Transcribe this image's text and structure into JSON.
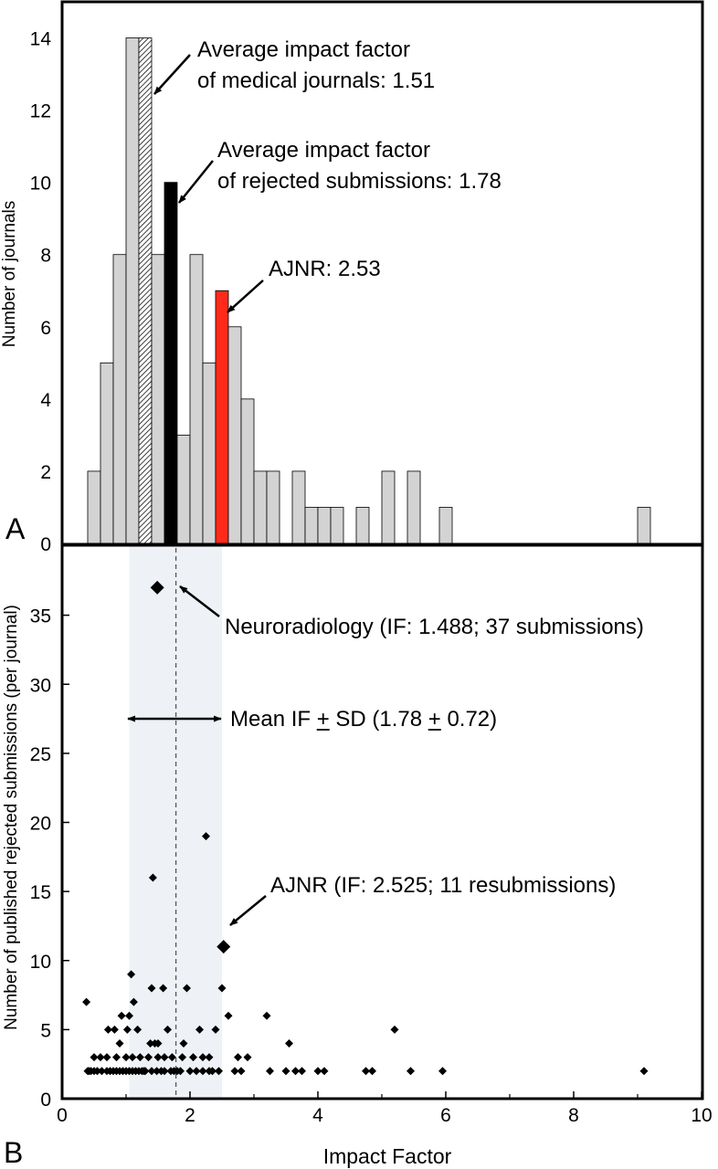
{
  "chart_data": [
    {
      "panel": "A",
      "type": "bar",
      "ylabel": "Number of journals",
      "xlim": [
        0,
        10
      ],
      "ylim": [
        0,
        15
      ],
      "yticks": [
        0,
        2,
        4,
        6,
        8,
        10,
        12,
        14
      ],
      "bin_width": 0.2,
      "colors": {
        "bar": "#d3d3d3",
        "rejected_mean": "#000000",
        "ajnr": "#ff2a1a",
        "medical_mean": "hatched"
      },
      "bars": [
        {
          "x": 0.5,
          "value": 2
        },
        {
          "x": 0.7,
          "value": 5
        },
        {
          "x": 0.9,
          "value": 8
        },
        {
          "x": 1.1,
          "value": 14
        },
        {
          "x": 1.3,
          "value": 14,
          "highlight": "medical_mean"
        },
        {
          "x": 1.5,
          "value": 8
        },
        {
          "x": 1.7,
          "value": 10,
          "highlight": "rejected_mean"
        },
        {
          "x": 1.9,
          "value": 3
        },
        {
          "x": 2.1,
          "value": 8
        },
        {
          "x": 2.3,
          "value": 5
        },
        {
          "x": 2.5,
          "value": 7,
          "highlight": "ajnr"
        },
        {
          "x": 2.7,
          "value": 6
        },
        {
          "x": 2.9,
          "value": 4
        },
        {
          "x": 3.1,
          "value": 2
        },
        {
          "x": 3.3,
          "value": 2
        },
        {
          "x": 3.7,
          "value": 2
        },
        {
          "x": 3.9,
          "value": 1
        },
        {
          "x": 4.1,
          "value": 1
        },
        {
          "x": 4.3,
          "value": 1
        },
        {
          "x": 4.7,
          "value": 1
        },
        {
          "x": 5.1,
          "value": 2
        },
        {
          "x": 5.5,
          "value": 2
        },
        {
          "x": 6.0,
          "value": 1
        },
        {
          "x": 9.1,
          "value": 1
        }
      ],
      "annotations": [
        {
          "lines": [
            "Average impact factor",
            "of medical journals: 1.51"
          ],
          "points_to": {
            "x": 1.45,
            "y": 12.5
          }
        },
        {
          "lines": [
            "Average impact factor",
            "of rejected submissions: 1.78"
          ],
          "points_to": {
            "x": 1.85,
            "y": 9.5
          }
        },
        {
          "lines": [
            "AJNR: 2.53"
          ],
          "points_to": {
            "x": 2.65,
            "y": 6.3
          }
        }
      ]
    },
    {
      "panel": "B",
      "type": "scatter",
      "xlabel": "Impact Factor",
      "ylabel": "Number of published rejected submissions (per journal)",
      "xlim": [
        0,
        10
      ],
      "ylim": [
        0,
        40
      ],
      "xticks": [
        0,
        2,
        4,
        6,
        8,
        10
      ],
      "yticks": [
        0,
        5,
        10,
        15,
        20,
        25,
        30,
        35
      ],
      "band": [
        1.05,
        2.5
      ],
      "mean_line": 1.78,
      "colors": {
        "band": "#eef2f6",
        "marker": "#000000",
        "mean_line": "#555555"
      },
      "points": [
        [
          0.38,
          7
        ],
        [
          0.4,
          2
        ],
        [
          0.42,
          2
        ],
        [
          0.45,
          2
        ],
        [
          0.5,
          2
        ],
        [
          0.5,
          3
        ],
        [
          0.55,
          2
        ],
        [
          0.6,
          3
        ],
        [
          0.62,
          2
        ],
        [
          0.7,
          2
        ],
        [
          0.7,
          3
        ],
        [
          0.72,
          5
        ],
        [
          0.75,
          2
        ],
        [
          0.8,
          2
        ],
        [
          0.82,
          5
        ],
        [
          0.85,
          2
        ],
        [
          0.85,
          3
        ],
        [
          0.9,
          2
        ],
        [
          0.9,
          4
        ],
        [
          0.93,
          6
        ],
        [
          0.95,
          2
        ],
        [
          1.0,
          2
        ],
        [
          1.0,
          3
        ],
        [
          1.02,
          5
        ],
        [
          1.05,
          2
        ],
        [
          1.05,
          6
        ],
        [
          1.08,
          9
        ],
        [
          1.1,
          2
        ],
        [
          1.1,
          3
        ],
        [
          1.12,
          7
        ],
        [
          1.15,
          2
        ],
        [
          1.18,
          5
        ],
        [
          1.2,
          2
        ],
        [
          1.22,
          3
        ],
        [
          1.25,
          2
        ],
        [
          1.28,
          2
        ],
        [
          1.3,
          2
        ],
        [
          1.35,
          3
        ],
        [
          1.38,
          4
        ],
        [
          1.4,
          2
        ],
        [
          1.4,
          8
        ],
        [
          1.42,
          16
        ],
        [
          1.45,
          4
        ],
        [
          1.48,
          2
        ],
        [
          1.5,
          3
        ],
        [
          1.5,
          4
        ],
        [
          1.55,
          2
        ],
        [
          1.58,
          8
        ],
        [
          1.6,
          2
        ],
        [
          1.6,
          3
        ],
        [
          1.65,
          5
        ],
        [
          1.7,
          2
        ],
        [
          1.72,
          3
        ],
        [
          1.75,
          2
        ],
        [
          1.8,
          2
        ],
        [
          1.85,
          2
        ],
        [
          1.88,
          3
        ],
        [
          1.9,
          4
        ],
        [
          1.95,
          8
        ],
        [
          2.0,
          2
        ],
        [
          2.05,
          3
        ],
        [
          2.1,
          2
        ],
        [
          2.15,
          5
        ],
        [
          2.2,
          2
        ],
        [
          2.2,
          3
        ],
        [
          2.25,
          19
        ],
        [
          2.3,
          2
        ],
        [
          2.3,
          3
        ],
        [
          2.35,
          2
        ],
        [
          2.4,
          5
        ],
        [
          2.45,
          2
        ],
        [
          2.5,
          11
        ],
        [
          2.5,
          8
        ],
        [
          2.6,
          6
        ],
        [
          2.7,
          2
        ],
        [
          2.75,
          3
        ],
        [
          2.8,
          2
        ],
        [
          2.9,
          3
        ],
        [
          3.2,
          6
        ],
        [
          3.25,
          2
        ],
        [
          3.5,
          2
        ],
        [
          3.55,
          4
        ],
        [
          3.65,
          2
        ],
        [
          3.75,
          2
        ],
        [
          4.0,
          2
        ],
        [
          4.1,
          2
        ],
        [
          4.75,
          2
        ],
        [
          4.85,
          2
        ],
        [
          5.2,
          5
        ],
        [
          5.45,
          2
        ],
        [
          5.95,
          2
        ],
        [
          9.1,
          2
        ]
      ],
      "highlighted_points": [
        {
          "x": 1.488,
          "y": 37
        },
        {
          "x": 2.525,
          "y": 11
        }
      ],
      "annotations": [
        {
          "text": "Neuroradiology (IF: 1.488; 37 submissions)",
          "points_to": {
            "x": 1.85,
            "y": 35.8
          }
        },
        {
          "text": "Mean IF + SD (1.78 + 0.72)",
          "underlined_char": 9
        },
        {
          "text": "AJNR (IF: 2.525; 11 resubmissions)",
          "points_to": {
            "x": 2.6,
            "y": 11.6
          }
        }
      ]
    }
  ]
}
